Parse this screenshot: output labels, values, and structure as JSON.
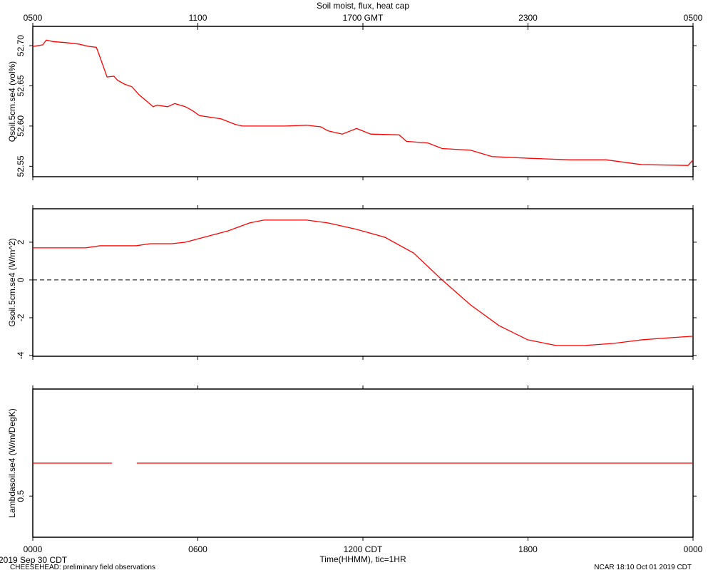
{
  "chart_data": [
    {
      "type": "line",
      "title": "Soil moist, flux, heat cap",
      "ylabel": "Qsoil.5cm.se4 (vol%)",
      "xlim": [
        0,
        24
      ],
      "x2ticks": [
        {
          "value": 0,
          "label": "0500"
        },
        {
          "value": 6,
          "label": "1100"
        },
        {
          "value": 12,
          "label": "1700 GMT"
        },
        {
          "value": 18,
          "label": "2300"
        },
        {
          "value": 24,
          "label": "0500"
        }
      ],
      "ylim": [
        52.537,
        52.724
      ],
      "yticks": [
        {
          "value": 52.55,
          "label": "52.55"
        },
        {
          "value": 52.6,
          "label": "52.60"
        },
        {
          "value": 52.65,
          "label": "52.65"
        },
        {
          "value": 52.7,
          "label": "52.70"
        }
      ],
      "x": [
        0,
        0.36,
        0.49,
        0.75,
        1.14,
        1.66,
        2.05,
        2.31,
        2.44,
        2.7,
        2.95,
        3.08,
        3.34,
        3.6,
        3.86,
        4.38,
        4.51,
        4.9,
        5.16,
        5.55,
        5.81,
        6.06,
        6.84,
        7.36,
        7.62,
        9.18,
        9.95,
        10.47,
        10.73,
        11.25,
        11.77,
        12.28,
        13.32,
        13.58,
        14.36,
        14.88,
        15.91,
        16.69,
        17.99,
        19.54,
        20.84,
        22.14,
        23.82,
        24
      ],
      "series": [
        {
          "color": "#ff0000",
          "values": [
            52.699,
            52.701,
            52.707,
            52.705,
            52.704,
            52.702,
            52.699,
            52.698,
            52.686,
            52.661,
            52.662,
            52.657,
            52.652,
            52.649,
            52.639,
            52.624,
            52.626,
            52.624,
            52.628,
            52.624,
            52.619,
            52.613,
            52.609,
            52.602,
            52.6,
            52.6,
            52.601,
            52.599,
            52.594,
            52.59,
            52.597,
            52.59,
            52.589,
            52.581,
            52.579,
            52.572,
            52.57,
            52.562,
            52.56,
            52.558,
            52.558,
            52.552,
            52.551,
            52.558
          ]
        }
      ]
    },
    {
      "type": "line",
      "ylabel": "Gsoil.5cm.se4 (W/m^2)",
      "xlim": [
        0,
        24
      ],
      "ylim": [
        -4.04,
        3.77
      ],
      "yticks": [
        -4,
        -2,
        0,
        2
      ],
      "hlines": [
        0
      ],
      "x": [
        0,
        1.92,
        2.44,
        3.75,
        4.27,
        5.05,
        5.55,
        6.32,
        7.1,
        7.88,
        8.4,
        9.95,
        10.73,
        11.77,
        12.8,
        13.84,
        14.88,
        15.91,
        16.95,
        17.99,
        19.02,
        20.06,
        21.1,
        22.14,
        23.17,
        24
      ],
      "series": [
        {
          "color": "#ff0000",
          "values": [
            1.7,
            1.7,
            1.81,
            1.81,
            1.92,
            1.92,
            2.0,
            2.3,
            2.6,
            3.02,
            3.17,
            3.17,
            3.02,
            2.68,
            2.26,
            1.43,
            0,
            -1.32,
            -2.42,
            -3.17,
            -3.47,
            -3.47,
            -3.36,
            -3.17,
            -3.06,
            -2.98
          ]
        }
      ]
    },
    {
      "type": "line",
      "ylabel": "Lambdasoil.se4 (W/m/DegK)",
      "xlabel": "Time(HHMM), tic=1HR",
      "xlim": [
        0,
        24
      ],
      "xticks": [
        {
          "value": 0,
          "label": "0000"
        },
        {
          "value": 6,
          "label": "0600"
        },
        {
          "value": 12,
          "label": "1200 CDT"
        },
        {
          "value": 18,
          "label": "1800"
        },
        {
          "value": 24,
          "label": "0000"
        }
      ],
      "ylim": [
        0.4,
        0.76
      ],
      "yticks": [
        0.5
      ],
      "x": [
        0,
        2.88,
        3.3,
        3.78,
        24
      ],
      "series": [
        {
          "color": "#ff0000",
          "values": [
            0.58,
            0.58,
            null,
            0.58,
            0.58
          ]
        }
      ]
    }
  ],
  "footer": {
    "date": "2019 Sep 30 CDT",
    "project": "CHEESEHEAD: preliminary field observations",
    "stamp": "NCAR 18:10 Oct 01 2019 CDT"
  }
}
